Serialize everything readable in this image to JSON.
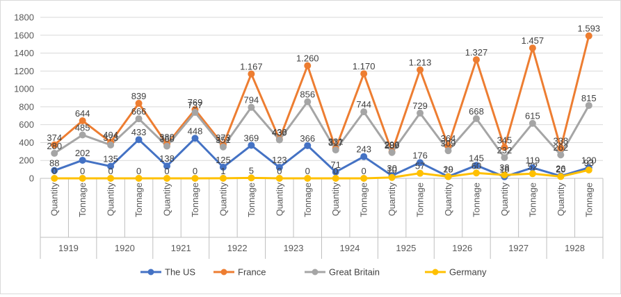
{
  "chart_data": {
    "type": "line",
    "title": "",
    "xlabel": "",
    "ylabel": "",
    "ylim": [
      0,
      1800
    ],
    "yticks": [
      "0",
      "200",
      "400",
      "600",
      "800",
      "1000",
      "1200",
      "1400",
      "1600",
      "1800"
    ],
    "grid": true,
    "legend_position": "bottom",
    "years": [
      "1919",
      "1920",
      "1921",
      "1922",
      "1923",
      "1924",
      "1925",
      "1926",
      "1927",
      "1928"
    ],
    "subcategories": [
      "Quantity",
      "Tonnage"
    ],
    "series": [
      {
        "name": "The US",
        "color": "#4472c4",
        "values": [
          88,
          202,
          135,
          433,
          138,
          448,
          125,
          369,
          123,
          366,
          71,
          243,
          30,
          176,
          20,
          145,
          18,
          119,
          26,
          120
        ],
        "labels": [
          "88",
          "202",
          "135",
          "433",
          "138",
          "448",
          "125",
          "369",
          "123",
          "366",
          "71",
          "243",
          "30",
          "176",
          "20",
          "145",
          "18",
          "119",
          "26",
          "120"
        ]
      },
      {
        "name": "France",
        "color": "#ed7d31",
        "values": [
          374,
          644,
          404,
          839,
          380,
          769,
          373,
          1167,
          436,
          1260,
          331,
          1170,
          296,
          1213,
          364,
          1327,
          345,
          1457,
          338,
          1593
        ],
        "labels": [
          "374",
          "644",
          "404",
          "839",
          "380",
          "769",
          "373",
          "1.167",
          "436",
          "1.260",
          "331",
          "1.170",
          "296",
          "1.213",
          "364",
          "1.327",
          "345",
          "1.457",
          "338",
          "1.593"
        ]
      },
      {
        "name": "Great Britain",
        "color": "#a5a5a5",
        "values": [
          280,
          485,
          373,
          666,
          360,
          737,
          351,
          794,
          430,
          856,
          317,
          744,
          289,
          729,
          309,
          668,
          232,
          615,
          262,
          815
        ],
        "labels": [
          "280",
          "485",
          "373",
          "666",
          "360",
          "737",
          "351",
          "794",
          "430",
          "856",
          "317",
          "744",
          "289",
          "729",
          "309",
          "668",
          "232",
          "615",
          "262",
          "815"
        ]
      },
      {
        "name": "Germany",
        "color": "#ffc000",
        "values": [
          0,
          0,
          0,
          0,
          0,
          0,
          1,
          5,
          0,
          0,
          0,
          0,
          10,
          57,
          19,
          60,
          38,
          52,
          20,
          93
        ],
        "labels": [
          "0",
          "0",
          "0",
          "0",
          "0",
          "0",
          "1",
          "5",
          "0",
          "0",
          "0",
          "0",
          "10",
          "57",
          "19",
          "60",
          "38",
          "52",
          "20",
          "93"
        ]
      }
    ]
  }
}
